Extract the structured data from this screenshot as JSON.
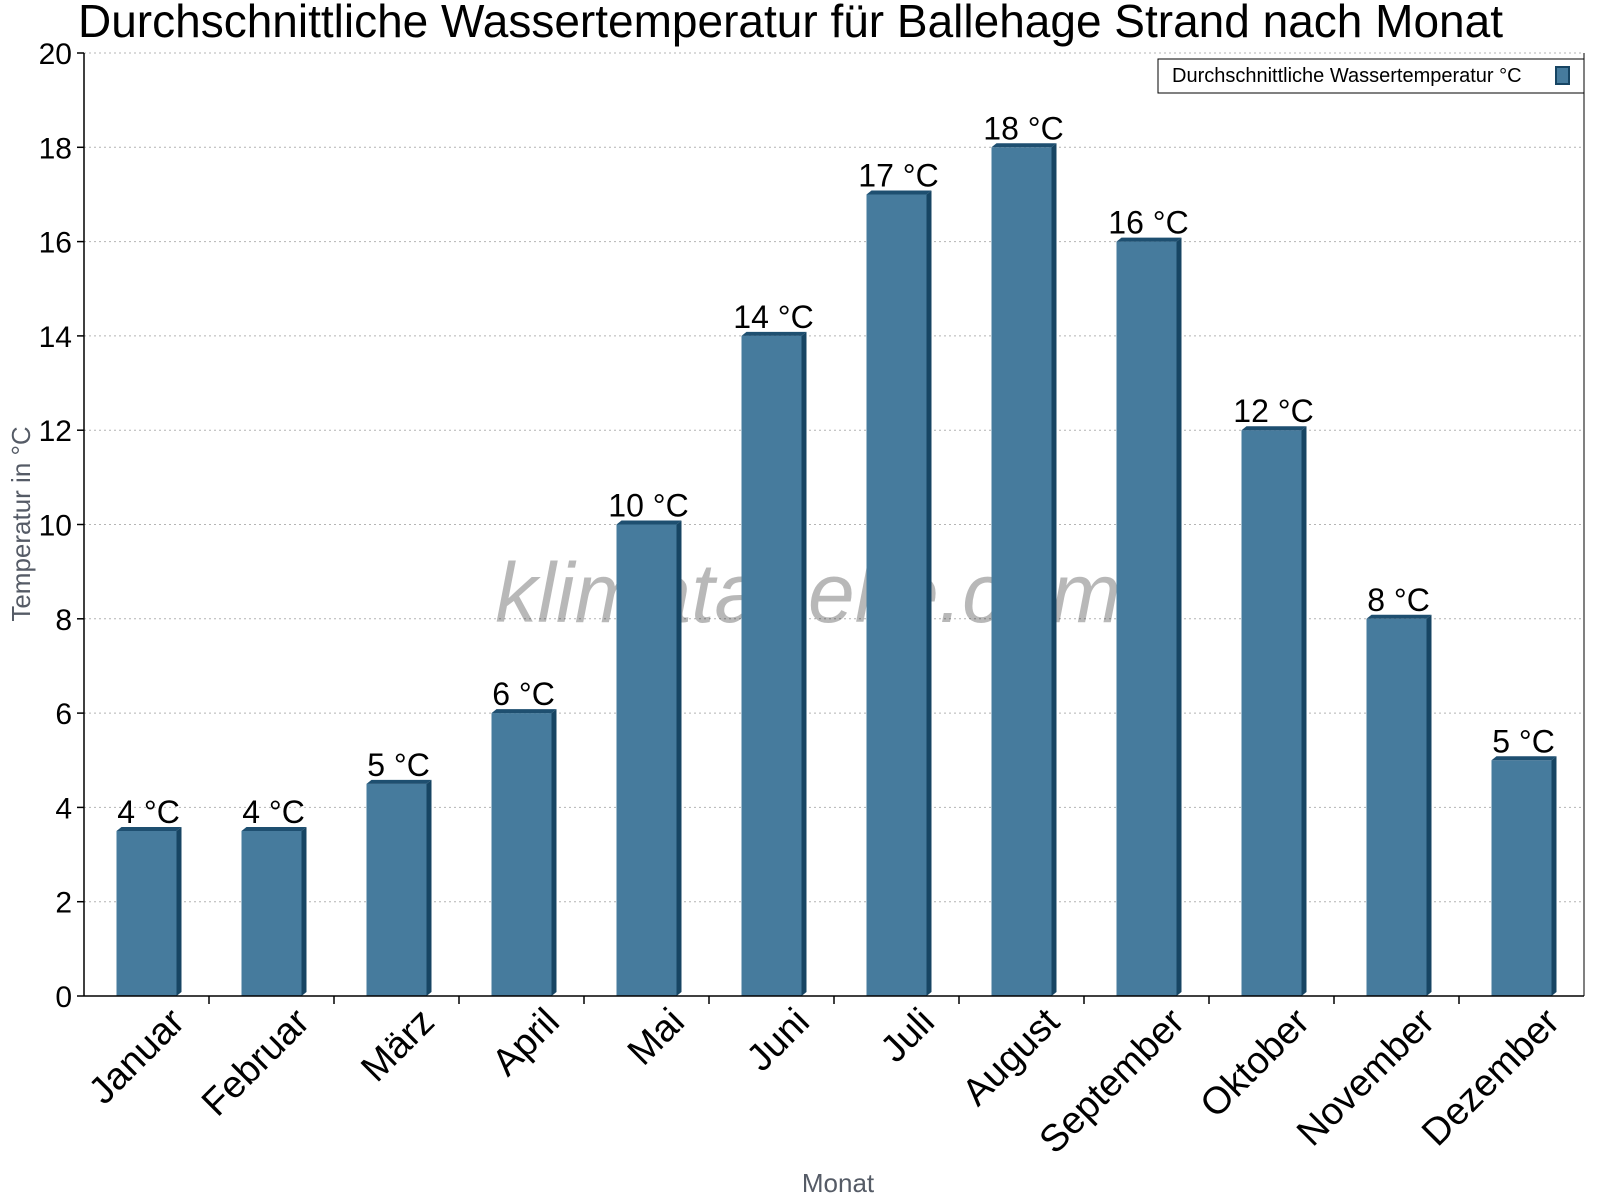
{
  "chart_data": {
    "type": "bar",
    "title": "Durchschnittliche Wassertemperatur für Ballehage Strand nach Monat",
    "xlabel": "Monat",
    "ylabel": "Temperatur in °C",
    "categories": [
      "Januar",
      "Februar",
      "März",
      "April",
      "Mai",
      "Juni",
      "Juli",
      "August",
      "September",
      "Oktober",
      "November",
      "Dezember"
    ],
    "series": [
      {
        "name": "Durchschnittliche Wassertemperatur °C",
        "values": [
          3.5,
          3.5,
          4.5,
          6,
          10,
          14,
          17,
          18,
          16,
          12,
          8,
          5
        ],
        "labels": [
          "4 °C",
          "4 °C",
          "5 °C",
          "6 °C",
          "10 °C",
          "14 °C",
          "17 °C",
          "18 °C",
          "16 °C",
          "12 °C",
          "8 °C",
          "5 °C"
        ],
        "color": "#467b9d"
      }
    ],
    "ylim": [
      0,
      20
    ],
    "yticks": [
      "0",
      "2",
      "4",
      "6",
      "8",
      "10",
      "12",
      "14",
      "16",
      "18",
      "20"
    ],
    "grid": true,
    "legend_position": "top-right",
    "watermark": "klimatabelle.com"
  },
  "colors": {
    "bar": "#467b9d",
    "bar_top": "#1e4f70",
    "bar_side": "#174563",
    "grid": "#b4b4b4",
    "axis": "#000000"
  }
}
